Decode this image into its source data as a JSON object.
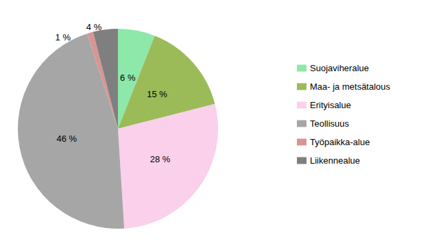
{
  "chart_data": {
    "type": "pie",
    "categories": [
      "Suojaviheralue",
      "Maa- ja metsätalous",
      "Erityisalue",
      "Teollisuus",
      "Työpaikka-alue",
      "Liikennealue"
    ],
    "values": [
      6,
      15,
      28,
      46,
      1,
      4
    ],
    "value_labels": [
      "6 %",
      "15 %",
      "28 %",
      "46 %",
      "1 %",
      "4 %"
    ],
    "colors": [
      "#8de8aa",
      "#9bbb59",
      "#fad0ea",
      "#a6a6a6",
      "#d99594",
      "#7f7f7f"
    ],
    "data_labels": true,
    "legend": "right"
  }
}
